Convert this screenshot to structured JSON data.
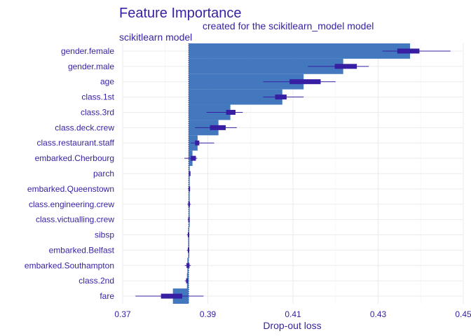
{
  "chart_data": {
    "type": "bar",
    "title": "Feature Importance",
    "subtitle": "created for the scikitlearn_model model",
    "panel_label": "scikitlearn  model",
    "xlabel": "Drop-out loss",
    "ylabel": "",
    "xlim": [
      0.37,
      0.45
    ],
    "x_ticks": [
      0.37,
      0.39,
      0.41,
      0.43,
      0.45
    ],
    "x_tick_labels": [
      "0.37",
      "0.39",
      "0.41",
      "0.43",
      "0.45"
    ],
    "baseline": 0.3855,
    "grid": true,
    "colors": {
      "bar": "#4378bf",
      "box": "#371ea3",
      "text": "#371ea3"
    },
    "variables": [
      {
        "label": "gender.female",
        "value": 0.4375,
        "q1": 0.4345,
        "median": 0.4375,
        "q3": 0.4397,
        "min": 0.431,
        "max": 0.447
      },
      {
        "label": "gender.male",
        "value": 0.4218,
        "q1": 0.4198,
        "median": 0.4218,
        "q3": 0.425,
        "min": 0.4135,
        "max": 0.4278
      },
      {
        "label": "age",
        "value": 0.4125,
        "q1": 0.4092,
        "median": 0.4125,
        "q3": 0.4165,
        "min": 0.403,
        "max": 0.42
      },
      {
        "label": "class.1st",
        "value": 0.4075,
        "q1": 0.4058,
        "median": 0.4075,
        "q3": 0.4085,
        "min": 0.403,
        "max": 0.4125
      },
      {
        "label": "class.3rd",
        "value": 0.3953,
        "q1": 0.3943,
        "median": 0.3953,
        "q3": 0.3965,
        "min": 0.3897,
        "max": 0.3982
      },
      {
        "label": "class.deck.crew",
        "value": 0.3925,
        "q1": 0.3905,
        "median": 0.3925,
        "q3": 0.3942,
        "min": 0.387,
        "max": 0.3968
      },
      {
        "label": "class.restaurant.staff",
        "value": 0.3876,
        "q1": 0.387,
        "median": 0.3876,
        "q3": 0.388,
        "min": 0.386,
        "max": 0.3915
      },
      {
        "label": "embarked.Cherbourg",
        "value": 0.3864,
        "q1": 0.386,
        "median": 0.3864,
        "q3": 0.3872,
        "min": 0.3845,
        "max": 0.3875
      },
      {
        "label": "parch",
        "value": 0.3857,
        "q1": 0.3856,
        "median": 0.3857,
        "q3": 0.3858,
        "min": 0.3855,
        "max": 0.3859
      },
      {
        "label": "embarked.Queenstown",
        "value": 0.3856,
        "q1": 0.3855,
        "median": 0.3856,
        "q3": 0.3857,
        "min": 0.3853,
        "max": 0.3858
      },
      {
        "label": "class.engineering.crew",
        "value": 0.3856,
        "q1": 0.3854,
        "median": 0.3856,
        "q3": 0.3858,
        "min": 0.3852,
        "max": 0.386
      },
      {
        "label": "class.victualling.crew",
        "value": 0.3855,
        "q1": 0.3854,
        "median": 0.3855,
        "q3": 0.3856,
        "min": 0.3853,
        "max": 0.3857
      },
      {
        "label": "sibsp",
        "value": 0.3854,
        "q1": 0.3853,
        "median": 0.3854,
        "q3": 0.3855,
        "min": 0.3851,
        "max": 0.3857
      },
      {
        "label": "embarked.Belfast",
        "value": 0.3854,
        "q1": 0.3853,
        "median": 0.3854,
        "q3": 0.3855,
        "min": 0.3851,
        "max": 0.3857
      },
      {
        "label": "embarked.Southampton",
        "value": 0.3852,
        "q1": 0.385,
        "median": 0.3852,
        "q3": 0.3857,
        "min": 0.3846,
        "max": 0.386
      },
      {
        "label": "class.2nd",
        "value": 0.3851,
        "q1": 0.3849,
        "median": 0.3851,
        "q3": 0.3853,
        "min": 0.3846,
        "max": 0.3855
      },
      {
        "label": "fare",
        "value": 0.3818,
        "q1": 0.379,
        "median": 0.3818,
        "q3": 0.384,
        "min": 0.373,
        "max": 0.389
      }
    ]
  }
}
